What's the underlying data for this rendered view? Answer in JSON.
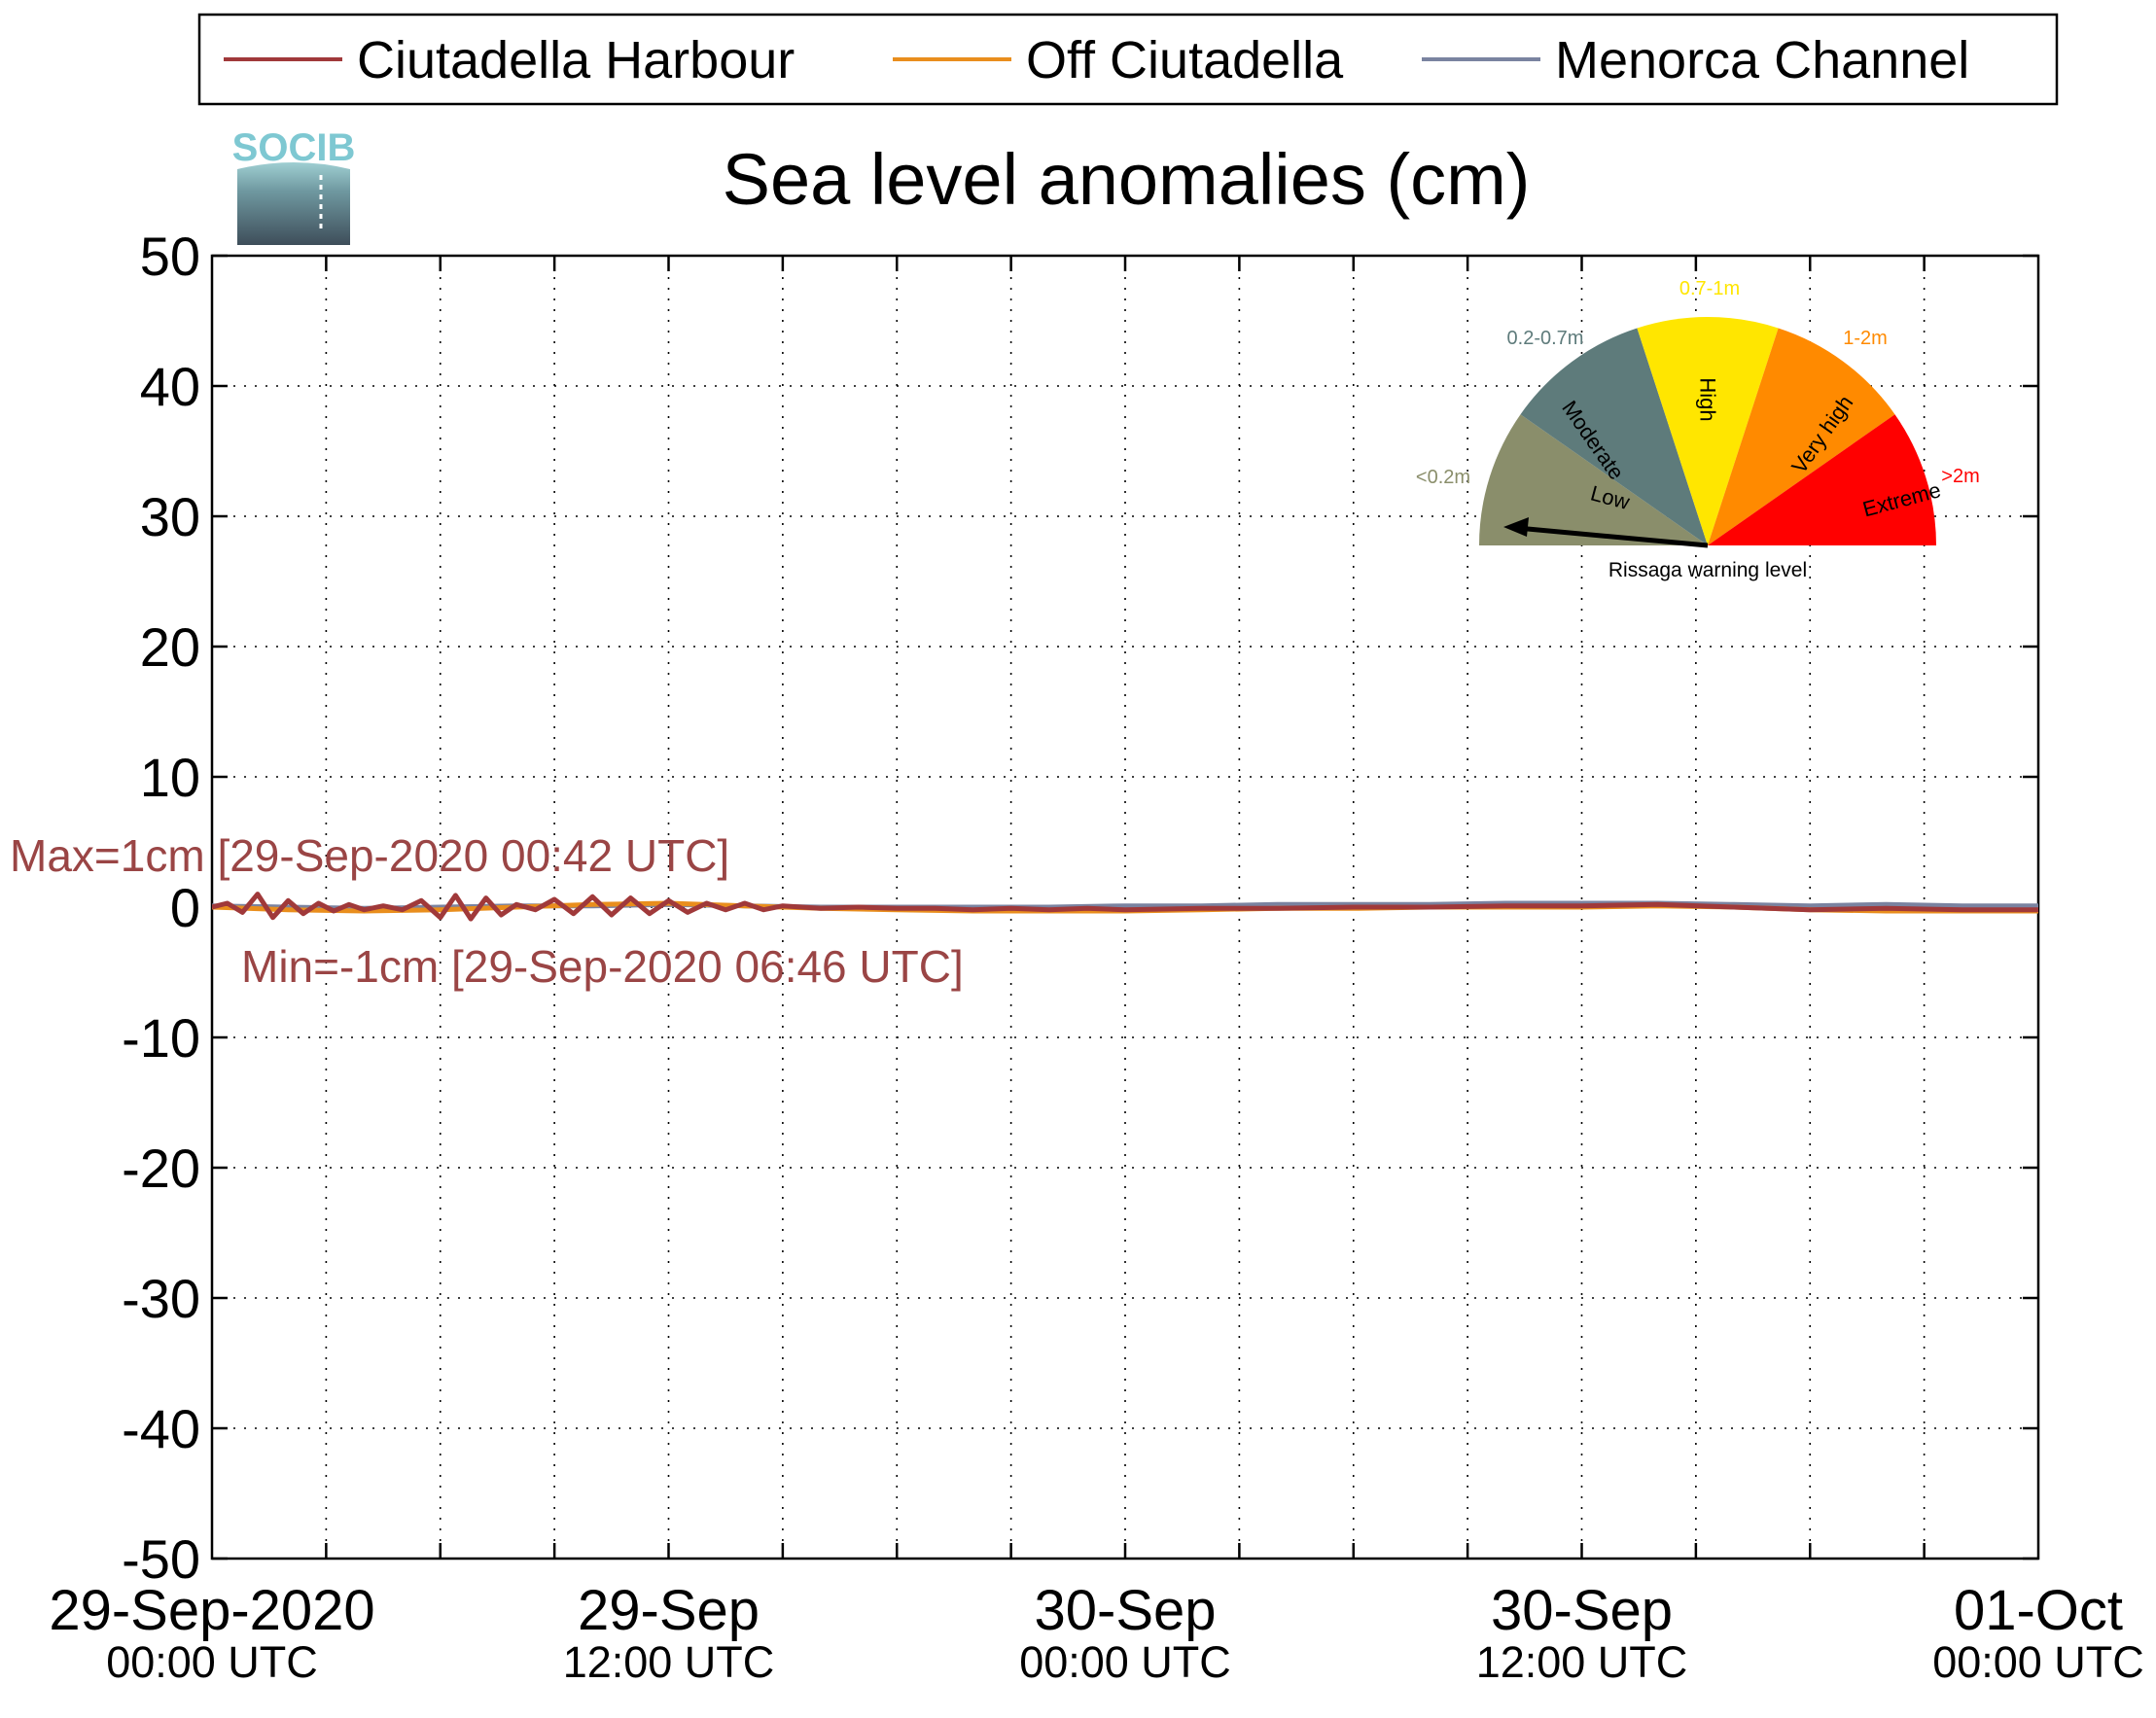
{
  "chart_data": {
    "type": "line",
    "title": "Sea level anomalies (cm)",
    "logo_text": "SOCIB",
    "xlim_hours": [
      0,
      48
    ],
    "ylim": [
      -50,
      50
    ],
    "y_ticks": [
      50,
      40,
      30,
      20,
      10,
      0,
      -10,
      -20,
      -30,
      -40,
      -50
    ],
    "x_ticks": [
      {
        "hours": 0,
        "line1": "29-Sep-2020",
        "line2": "00:00 UTC"
      },
      {
        "hours": 12,
        "line1": "29-Sep",
        "line2": "12:00 UTC"
      },
      {
        "hours": 24,
        "line1": "30-Sep",
        "line2": "00:00 UTC"
      },
      {
        "hours": 36,
        "line1": "30-Sep",
        "line2": "12:00 UTC"
      },
      {
        "hours": 48,
        "line1": "01-Oct",
        "line2": "00:00 UTC"
      }
    ],
    "grid": true,
    "legend_placement": "top",
    "series": [
      {
        "name": "Ciutadella Harbour",
        "color": "#a0393a",
        "x": [
          0,
          0.4,
          0.8,
          1.2,
          1.6,
          2,
          2.4,
          2.8,
          3.2,
          3.6,
          4,
          4.5,
          5,
          5.5,
          6,
          6.4,
          6.8,
          7.2,
          7.6,
          8,
          8.5,
          9,
          9.5,
          10,
          10.5,
          11,
          11.5,
          12,
          12.5,
          13,
          13.5,
          14,
          14.5,
          15,
          16,
          17,
          18,
          19,
          20,
          21,
          22,
          23,
          24,
          26,
          28,
          30,
          32,
          34,
          36,
          38,
          40,
          42,
          44,
          46,
          48
        ],
        "y": [
          0,
          0.3,
          -0.4,
          1,
          -0.8,
          0.5,
          -0.5,
          0.3,
          -0.3,
          0.2,
          -0.2,
          0.1,
          -0.2,
          0.5,
          -0.8,
          0.9,
          -0.9,
          0.7,
          -0.6,
          0.2,
          -0.2,
          0.6,
          -0.5,
          0.8,
          -0.6,
          0.7,
          -0.5,
          0.5,
          -0.4,
          0.3,
          -0.2,
          0.3,
          -0.2,
          0.1,
          -0.1,
          0,
          -0.1,
          -0.1,
          -0.2,
          -0.1,
          -0.2,
          -0.1,
          -0.2,
          -0.1,
          -0.1,
          0,
          0,
          0.1,
          0.1,
          0.2,
          0,
          -0.2,
          -0.1,
          -0.2,
          -0.2
        ]
      },
      {
        "name": "Off Ciutadella",
        "color": "#e98e1d",
        "x": [
          0,
          2,
          4,
          6,
          8,
          10,
          12,
          14,
          16,
          18,
          20,
          22,
          24,
          26,
          28,
          30,
          32,
          34,
          36,
          38,
          40,
          42,
          44,
          46,
          48
        ],
        "y": [
          0,
          -0.2,
          -0.3,
          -0.2,
          0,
          0.2,
          0.3,
          0.1,
          -0.1,
          -0.2,
          -0.3,
          -0.3,
          -0.3,
          -0.2,
          -0.1,
          -0.1,
          0,
          0,
          0,
          0.1,
          0,
          -0.2,
          -0.3,
          -0.3,
          -0.3
        ]
      },
      {
        "name": "Menorca Channel",
        "color": "#7a83a0",
        "x": [
          0,
          2,
          4,
          6,
          8,
          10,
          12,
          14,
          16,
          18,
          20,
          22,
          24,
          26,
          28,
          30,
          32,
          34,
          36,
          38,
          40,
          42,
          44,
          46,
          48
        ],
        "y": [
          0.1,
          0,
          -0.1,
          0,
          0.1,
          0.1,
          0.2,
          0.1,
          0,
          0,
          0,
          0,
          0.1,
          0.1,
          0.2,
          0.2,
          0.2,
          0.3,
          0.3,
          0.3,
          0.2,
          0.1,
          0.2,
          0.1,
          0.1
        ]
      }
    ],
    "annotations": {
      "max": "Max=1cm [29-Sep-2020 00:42 UTC]",
      "min": "Min=-1cm [29-Sep-2020 06:46 UTC]",
      "color": "#9a4545"
    },
    "warning_gauge": {
      "caption": "Rissaga warning level",
      "needle_level": "Low",
      "sectors": [
        {
          "label": "Low",
          "range": "<0.2m",
          "color": "#8a8e6b"
        },
        {
          "label": "Moderate",
          "range": "0.2-0.7m",
          "color": "#5e7b7b"
        },
        {
          "label": "High",
          "range": "0.7-1m",
          "color": "#ffe600"
        },
        {
          "label": "Very high",
          "range": "1-2m",
          "color": "#ff8a00"
        },
        {
          "label": "Extreme",
          "range": ">2m",
          "color": "#ff0000"
        }
      ]
    }
  }
}
